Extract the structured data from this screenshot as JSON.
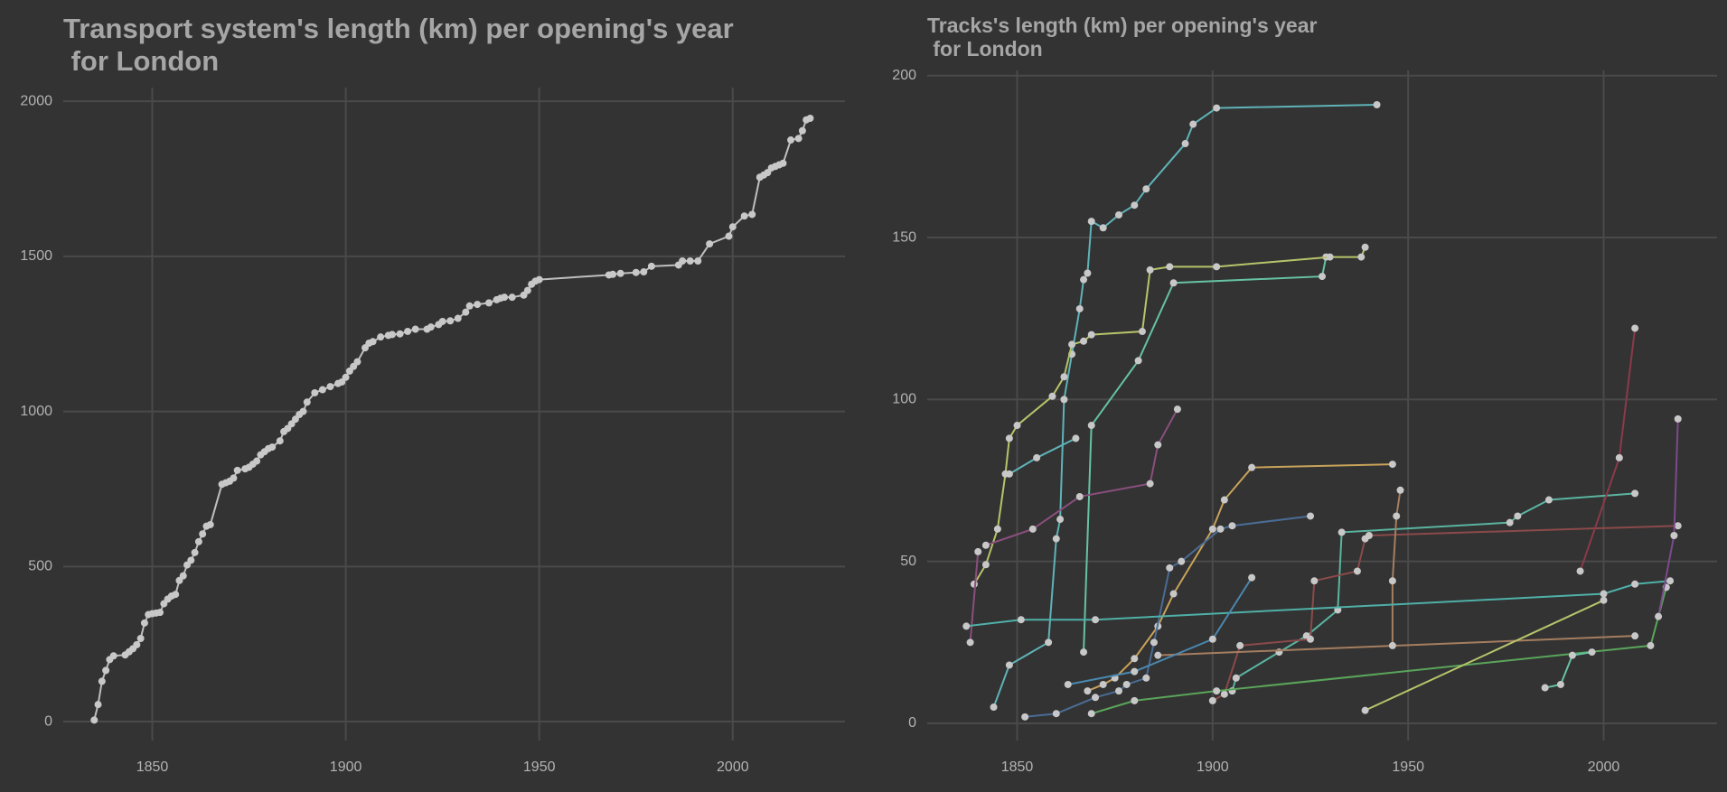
{
  "chart_data": [
    {
      "type": "line",
      "title": "Transport system's length (km) per opening's year\n for London",
      "color": "#bfbfbf",
      "grid": true,
      "xlim": [
        1827,
        2029
      ],
      "xticks": [
        1850,
        1900,
        1950,
        2000
      ],
      "ylim": [
        -61,
        2044
      ],
      "yticks": [
        0,
        500,
        1000,
        1500,
        2000
      ],
      "x": [
        1835,
        1836,
        1837,
        1838,
        1839,
        1840,
        1843,
        1844,
        1845,
        1846,
        1847,
        1848,
        1849,
        1850,
        1851,
        1852,
        1853,
        1854,
        1855,
        1856,
        1857,
        1858,
        1859,
        1860,
        1861,
        1862,
        1863,
        1864,
        1865,
        1868,
        1869,
        1870,
        1871,
        1872,
        1874,
        1875,
        1876,
        1877,
        1878,
        1879,
        1880,
        1881,
        1883,
        1884,
        1885,
        1886,
        1887,
        1888,
        1889,
        1890,
        1892,
        1894,
        1896,
        1898,
        1899,
        1900,
        1901,
        1902,
        1903,
        1905,
        1906,
        1907,
        1909,
        1911,
        1912,
        1914,
        1916,
        1918,
        1921,
        1922,
        1924,
        1925,
        1927,
        1929,
        1931,
        1932,
        1934,
        1937,
        1939,
        1940,
        1941,
        1943,
        1946,
        1947,
        1948,
        1949,
        1950,
        1968,
        1969,
        1971,
        1975,
        1977,
        1979,
        1986,
        1987,
        1989,
        1991,
        1994,
        1999,
        2000,
        2003,
        2005,
        2007,
        2008,
        2009,
        2010,
        2011,
        2012,
        2013,
        2015,
        2017,
        2018,
        2019,
        2020
      ],
      "values": [
        5,
        55,
        130,
        165,
        200,
        212,
        215,
        225,
        235,
        248,
        268,
        318,
        345,
        348,
        350,
        352,
        380,
        395,
        405,
        410,
        455,
        470,
        505,
        520,
        545,
        580,
        605,
        630,
        635,
        765,
        770,
        775,
        785,
        810,
        815,
        820,
        830,
        840,
        860,
        870,
        880,
        885,
        905,
        935,
        945,
        960,
        975,
        990,
        1000,
        1030,
        1060,
        1070,
        1080,
        1090,
        1095,
        1110,
        1130,
        1145,
        1160,
        1205,
        1220,
        1225,
        1240,
        1245,
        1248,
        1250,
        1258,
        1265,
        1265,
        1272,
        1280,
        1290,
        1292,
        1300,
        1320,
        1340,
        1345,
        1350,
        1360,
        1365,
        1368,
        1368,
        1375,
        1390,
        1410,
        1420,
        1425,
        1440,
        1442,
        1445,
        1448,
        1450,
        1468,
        1472,
        1485,
        1485,
        1485,
        1540,
        1565,
        1595,
        1630,
        1635,
        1755,
        1762,
        1770,
        1785,
        1790,
        1795,
        1800,
        1875,
        1880,
        1905,
        1940,
        1945
      ]
    },
    {
      "type": "line",
      "title": "Tracks's length (km) per opening's year\n for London",
      "grid": true,
      "xlim": [
        1827,
        2029
      ],
      "xticks": [
        1850,
        1900,
        1950,
        2000
      ],
      "ylim": [
        -5.3,
        201.6
      ],
      "yticks": [
        0,
        50,
        100,
        150,
        200
      ],
      "series": [
        {
          "color": "#5fb3b8",
          "x": [
            1844,
            1848,
            1858,
            1860,
            1861,
            1862,
            1864,
            1866,
            1867,
            1868,
            1869,
            1872,
            1876,
            1880,
            1883,
            1893,
            1895,
            1901,
            1942
          ],
          "values": [
            5,
            18,
            25,
            57,
            63,
            100,
            114,
            128,
            137,
            139,
            155,
            153,
            157,
            160,
            165,
            179,
            185,
            190,
            191
          ]
        },
        {
          "color": "#66c2a5",
          "x": [
            1867,
            1869,
            1881,
            1890,
            1928,
            1929
          ],
          "values": [
            22,
            92,
            112,
            136,
            138,
            144
          ]
        },
        {
          "color": "#b8c46a",
          "x": [
            1839,
            1842,
            1845,
            1847,
            1848,
            1850,
            1859,
            1862,
            1864,
            1867,
            1869,
            1882,
            1884,
            1889,
            1901,
            1930,
            1938,
            1939
          ],
          "values": [
            43,
            49,
            60,
            77,
            88,
            92,
            101,
            107,
            117,
            118,
            120,
            121,
            140,
            141,
            141,
            144,
            144,
            147
          ]
        },
        {
          "color": "#5fb3b8",
          "x": [
            1848,
            1855,
            1865
          ],
          "values": [
            77,
            82,
            88
          ]
        },
        {
          "color": "#8a4f7d",
          "x": [
            1842,
            1854,
            1866,
            1884,
            1886,
            1891
          ],
          "values": [
            55,
            60,
            70,
            74,
            86,
            97
          ]
        },
        {
          "color": "#8a4f7d",
          "x": [
            1838,
            1840
          ],
          "values": [
            25,
            53
          ]
        },
        {
          "color": "#c9a35a",
          "x": [
            1868,
            1872,
            1875,
            1880,
            1886,
            1890,
            1900,
            1903,
            1910,
            1946
          ],
          "values": [
            10,
            12,
            14,
            20,
            30,
            40,
            60,
            69,
            79,
            80
          ]
        },
        {
          "color": "#4a6c95",
          "x": [
            1852,
            1860,
            1870,
            1876,
            1878,
            1883,
            1885,
            1889,
            1892,
            1902,
            1905,
            1925
          ],
          "values": [
            2,
            3,
            8,
            10,
            12,
            14,
            25,
            48,
            50,
            60,
            61,
            64
          ]
        },
        {
          "color": "#5ab4a0",
          "x": [
            1905,
            1906,
            1917,
            1924,
            1932,
            1933,
            1976,
            1978,
            1986,
            2008
          ],
          "values": [
            10,
            14,
            22,
            27,
            35,
            59,
            62,
            64,
            69,
            71
          ]
        },
        {
          "color": "#8b4a4a",
          "x": [
            1900,
            1903,
            1907,
            1925,
            1926,
            1937,
            1939,
            1940,
            2019
          ],
          "values": [
            7,
            9,
            24,
            26,
            44,
            47,
            57,
            58,
            61
          ]
        },
        {
          "color": "#a57e60",
          "x": [
            1886,
            2008
          ],
          "values": [
            21,
            27
          ]
        },
        {
          "color": "#a57e60",
          "x": [
            1946,
            1946,
            1947,
            1948
          ],
          "values": [
            24,
            44,
            64,
            72
          ]
        },
        {
          "color": "#5aa55a",
          "x": [
            1869,
            1880,
            1901,
            2012,
            2016
          ],
          "values": [
            3,
            7,
            10,
            24,
            42
          ]
        },
        {
          "color": "#4fb0a8",
          "x": [
            1837,
            1851,
            1870,
            2000,
            2008,
            2017
          ],
          "values": [
            30,
            32,
            32,
            40,
            43,
            44
          ]
        },
        {
          "color": "#b8c46a",
          "x": [
            1939,
            2000
          ],
          "values": [
            4,
            38
          ]
        },
        {
          "color": "#8b3a4a",
          "x": [
            1994,
            2004,
            2008
          ],
          "values": [
            47,
            82,
            122
          ]
        },
        {
          "color": "#7b4b8b",
          "x": [
            2014,
            2018,
            2019
          ],
          "values": [
            33,
            58,
            94
          ]
        },
        {
          "color": "#4a88b0",
          "x": [
            1863,
            1880,
            1900,
            1910
          ],
          "values": [
            12,
            16,
            26,
            45
          ]
        },
        {
          "color": "#66c2a5",
          "x": [
            1985,
            1989,
            1992,
            1997
          ],
          "values": [
            11,
            12,
            21,
            22
          ]
        }
      ]
    }
  ]
}
